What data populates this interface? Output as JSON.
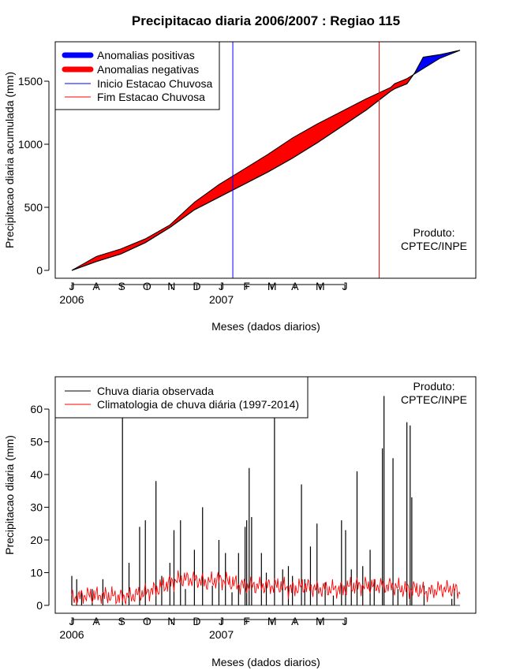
{
  "title": "Precipitacao diaria 2006/2007 : Regiao 115",
  "colors": {
    "positive": "#0000ff",
    "negative": "#ff0000",
    "obs_bar": "#000000",
    "clim_line": "#ff0000",
    "rain_start": "#0000ff",
    "rain_end": "#ff0000"
  },
  "chart_data": [
    {
      "type": "area",
      "ylabel": "Precipitacao diaria acumulada (mm)",
      "xlabel": "Meses (dados diarios)",
      "ylim": [
        0,
        1750
      ],
      "yticks": [
        0,
        500,
        1000,
        1500
      ],
      "months": [
        "J",
        "A",
        "S",
        "O",
        "N",
        "D",
        "J",
        "F",
        "M",
        "A",
        "M",
        "J"
      ],
      "years": [
        {
          "label": "2006",
          "month_index": 0
        },
        {
          "label": "2007",
          "month_index": 6
        }
      ],
      "start_date": "2006-06-01",
      "end_date": "2007-06-30",
      "legend": [
        {
          "label": "Anomalias positivas",
          "key": "positive",
          "style": "thick"
        },
        {
          "label": "Anomalias negativas",
          "key": "negative",
          "style": "thick"
        },
        {
          "label": "Inicio Estacao Chuvosa",
          "key": "rain_start",
          "style": "thin"
        },
        {
          "label": "Fim Estacao Chuvosa",
          "key": "rain_end",
          "style": "thin"
        }
      ],
      "rain_start_day": 197,
      "rain_end_day": 376,
      "product_label": [
        "Produto:",
        "CPTEC/INPE"
      ],
      "observed_points": [
        [
          0,
          0
        ],
        [
          30,
          70
        ],
        [
          60,
          130
        ],
        [
          90,
          220
        ],
        [
          120,
          340
        ],
        [
          150,
          480
        ],
        [
          180,
          580
        ],
        [
          210,
          680
        ],
        [
          240,
          780
        ],
        [
          270,
          890
        ],
        [
          300,
          1010
        ],
        [
          330,
          1140
        ],
        [
          360,
          1270
        ],
        [
          390,
          1420
        ],
        [
          395,
          1440
        ],
        [
          410,
          1480
        ],
        [
          420,
          1570
        ],
        [
          430,
          1690
        ],
        [
          450,
          1710
        ],
        [
          475,
          1745
        ]
      ],
      "climatology_points": [
        [
          0,
          0
        ],
        [
          30,
          110
        ],
        [
          60,
          170
        ],
        [
          90,
          250
        ],
        [
          120,
          360
        ],
        [
          150,
          540
        ],
        [
          180,
          680
        ],
        [
          210,
          800
        ],
        [
          240,
          920
        ],
        [
          270,
          1050
        ],
        [
          300,
          1160
        ],
        [
          330,
          1260
        ],
        [
          360,
          1360
        ],
        [
          390,
          1450
        ],
        [
          395,
          1480
        ],
        [
          410,
          1520
        ],
        [
          420,
          1560
        ],
        [
          430,
          1600
        ],
        [
          450,
          1680
        ],
        [
          475,
          1745
        ]
      ]
    },
    {
      "type": "bar",
      "ylabel": "Precipitacao diaria (mm)",
      "xlabel": "Meses (dados diarios)",
      "ylim": [
        0,
        65
      ],
      "yticks": [
        0,
        10,
        20,
        30,
        40,
        50,
        60
      ],
      "months": [
        "J",
        "A",
        "S",
        "O",
        "N",
        "D",
        "J",
        "F",
        "M",
        "A",
        "M",
        "J"
      ],
      "years": [
        {
          "label": "2006",
          "month_index": 0
        },
        {
          "label": "2007",
          "month_index": 6
        }
      ],
      "legend": [
        {
          "label": "Chuva diaria observada",
          "key": "obs_bar"
        },
        {
          "label": "Climatologia de chuva diária (1997-2014)",
          "key": "clim_line"
        }
      ],
      "product_label": [
        "Produto:",
        "CPTEC/INPE"
      ],
      "observed_bars": [
        [
          0,
          9
        ],
        [
          6,
          8
        ],
        [
          12,
          4
        ],
        [
          25,
          5
        ],
        [
          38,
          8
        ],
        [
          62,
          58
        ],
        [
          70,
          13
        ],
        [
          83,
          24
        ],
        [
          90,
          26
        ],
        [
          103,
          38
        ],
        [
          110,
          9
        ],
        [
          120,
          13
        ],
        [
          125,
          23
        ],
        [
          133,
          26
        ],
        [
          139,
          5
        ],
        [
          150,
          17
        ],
        [
          160,
          30
        ],
        [
          172,
          6
        ],
        [
          180,
          20
        ],
        [
          188,
          16
        ],
        [
          196,
          4
        ],
        [
          204,
          16
        ],
        [
          212,
          24
        ],
        [
          214,
          26
        ],
        [
          217,
          42
        ],
        [
          220,
          27
        ],
        [
          232,
          16
        ],
        [
          238,
          10
        ],
        [
          248,
          58
        ],
        [
          258,
          11
        ],
        [
          265,
          12
        ],
        [
          270,
          9
        ],
        [
          281,
          37
        ],
        [
          285,
          8
        ],
        [
          292,
          18
        ],
        [
          300,
          25
        ],
        [
          310,
          7
        ],
        [
          320,
          3
        ],
        [
          330,
          26
        ],
        [
          335,
          23
        ],
        [
          342,
          11
        ],
        [
          349,
          41
        ],
        [
          356,
          12
        ],
        [
          365,
          17
        ],
        [
          370,
          8
        ],
        [
          380,
          48
        ],
        [
          382,
          64
        ],
        [
          393,
          45
        ],
        [
          399,
          5
        ],
        [
          410,
          56
        ],
        [
          414,
          55
        ],
        [
          416,
          33
        ],
        [
          431,
          6
        ],
        [
          465,
          2
        ],
        [
          468,
          5
        ]
      ],
      "climatology_points": [
        [
          0,
          2
        ],
        [
          15,
          3
        ],
        [
          30,
          3
        ],
        [
          45,
          3
        ],
        [
          60,
          2.5
        ],
        [
          75,
          3
        ],
        [
          90,
          4
        ],
        [
          105,
          5
        ],
        [
          120,
          7
        ],
        [
          135,
          8
        ],
        [
          150,
          8
        ],
        [
          165,
          7
        ],
        [
          180,
          8
        ],
        [
          195,
          7
        ],
        [
          210,
          6
        ],
        [
          225,
          6
        ],
        [
          240,
          6
        ],
        [
          255,
          6
        ],
        [
          270,
          5
        ],
        [
          285,
          6
        ],
        [
          300,
          5
        ],
        [
          315,
          5
        ],
        [
          330,
          5
        ],
        [
          345,
          6
        ],
        [
          360,
          6
        ],
        [
          375,
          6
        ],
        [
          390,
          6
        ],
        [
          405,
          5
        ],
        [
          420,
          5
        ],
        [
          435,
          4
        ],
        [
          450,
          5
        ],
        [
          465,
          5
        ],
        [
          475,
          4
        ]
      ]
    }
  ]
}
